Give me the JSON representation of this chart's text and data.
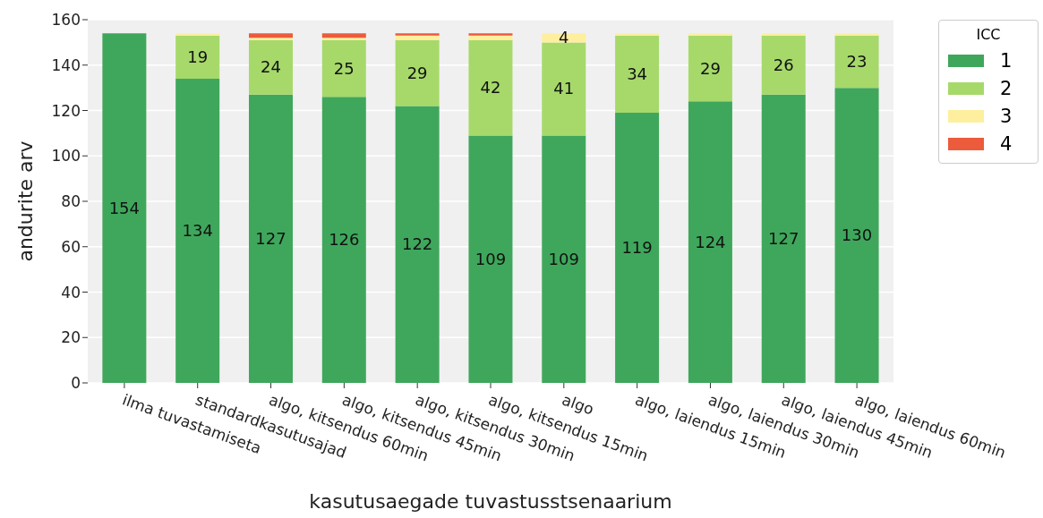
{
  "chart_data": {
    "type": "bar",
    "stacked": true,
    "xlabel": "kasutusaegade tuvastusstsenaarium",
    "ylabel": "andurite arv",
    "legend_title": "ICC",
    "legend": "right",
    "categories": [
      "ilma tuvastamiseta",
      "standardkasutusajad",
      "algo, kitsendus 60min",
      "algo, kitsendus 45min",
      "algo, kitsendus 30min",
      "algo, kitsendus 15min",
      "algo",
      "algo, laiendus 15min",
      "algo, laiendus 30min",
      "algo, laiendus 45min",
      "algo, laiendus 60min"
    ],
    "series": [
      {
        "name": "1",
        "color": "#3fa75c",
        "values": [
          154,
          134,
          127,
          126,
          122,
          109,
          109,
          119,
          124,
          127,
          130
        ],
        "value_labels": [
          "154",
          "134",
          "127",
          "126",
          "122",
          "109",
          "109",
          "119",
          "124",
          "127",
          "130"
        ]
      },
      {
        "name": "2",
        "color": "#a6d96a",
        "values": [
          0,
          19,
          24,
          25,
          29,
          42,
          41,
          34,
          29,
          26,
          23
        ],
        "value_labels": [
          null,
          "19",
          "24",
          "25",
          "29",
          "42",
          "41",
          "34",
          "29",
          "26",
          "23"
        ]
      },
      {
        "name": "3",
        "color": "#feef9f",
        "values": [
          0,
          1,
          1,
          1,
          2,
          2,
          4,
          1,
          1,
          1,
          1
        ],
        "value_labels": [
          null,
          null,
          null,
          null,
          null,
          null,
          "4",
          null,
          null,
          null,
          null
        ]
      },
      {
        "name": "4",
        "color": "#ec5b3b",
        "values": [
          0,
          0,
          2,
          2,
          1,
          1,
          0,
          0,
          0,
          0,
          0
        ],
        "value_labels": [
          null,
          null,
          null,
          null,
          null,
          null,
          null,
          null,
          null,
          null,
          null
        ]
      }
    ],
    "ylim": [
      0,
      160
    ],
    "yticks": [
      0,
      20,
      40,
      60,
      80,
      100,
      120,
      140,
      160
    ],
    "grid": "y"
  }
}
